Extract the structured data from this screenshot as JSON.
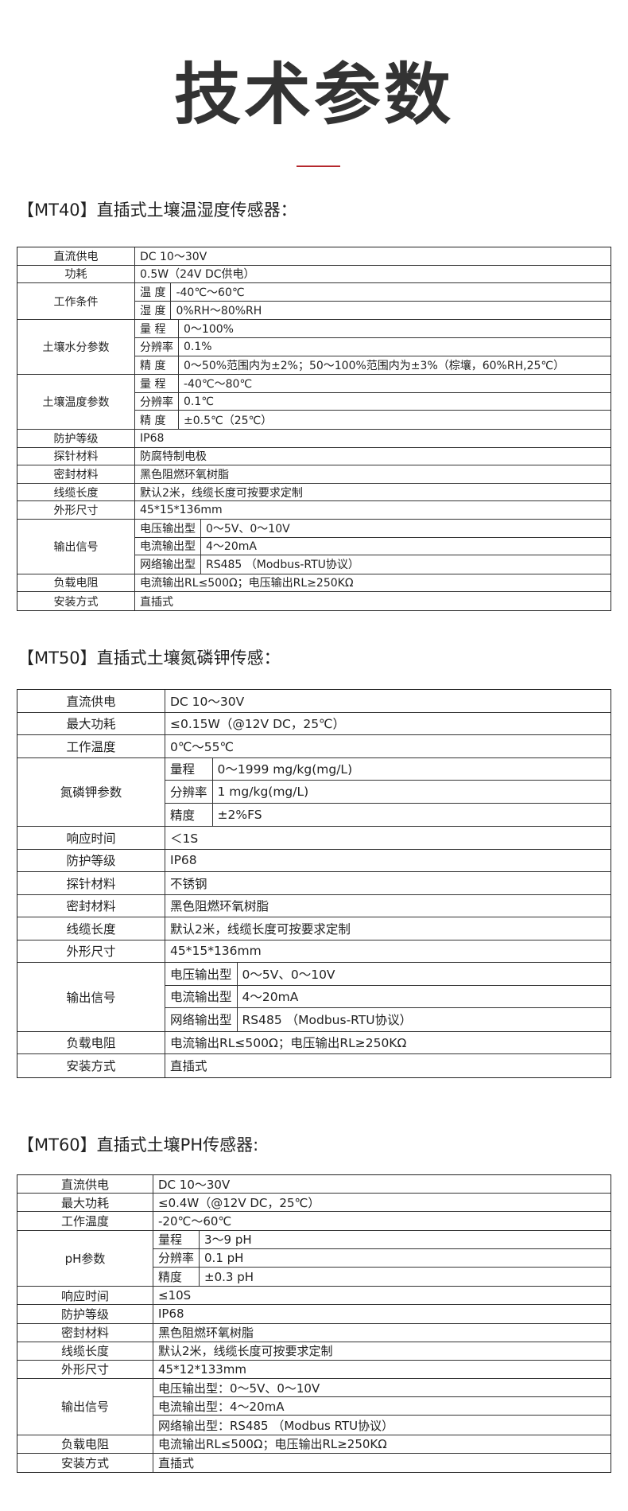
{
  "header": {
    "title": "技术参数"
  },
  "tables": [
    {
      "heading": "【MT40】直插式土壤温湿度传感器：",
      "rows": [
        {
          "label": "直流供电",
          "value": "DC 10～30V"
        },
        {
          "label": "功耗",
          "value": "0.5W（24V DC供电）"
        },
        {
          "label": "工作条件",
          "items": [
            {
              "label": "温 度",
              "value": "-40℃～60℃"
            },
            {
              "label": "湿 度",
              "value": "0%RH～80%RH"
            }
          ]
        },
        {
          "label": "土壤水分参数",
          "items": [
            {
              "label": "量 程",
              "value": "0～100%"
            },
            {
              "label": "分辨率",
              "value": "0.1%"
            },
            {
              "label": "精 度",
              "value": "0～50%范围内为±2%；50～100%范围内为±3%（棕壤，60%RH,25℃）"
            }
          ]
        },
        {
          "label": "土壤温度参数",
          "items": [
            {
              "label": "量 程",
              "value": "-40℃～80℃"
            },
            {
              "label": "分辨率",
              "value": "0.1℃"
            },
            {
              "label": "精 度",
              "value": "±0.5℃（25℃）"
            }
          ]
        },
        {
          "label": "防护等级",
          "value": "IP68"
        },
        {
          "label": "探针材料",
          "value": "防腐特制电极"
        },
        {
          "label": "密封材料",
          "value": "黑色阻燃环氧树脂"
        },
        {
          "label": "线缆长度",
          "value": "默认2米，线缆长度可按要求定制"
        },
        {
          "label": "外形尺寸",
          "value": "45*15*136mm"
        },
        {
          "label": "输出信号",
          "items": [
            {
              "label": "电压输出型",
              "value": "0～5V、0～10V"
            },
            {
              "label": "电流输出型",
              "value": "4～20mA"
            },
            {
              "label": "网络输出型",
              "value": "RS485 （Modbus-RTU协议）"
            }
          ]
        },
        {
          "label": "负载电阻",
          "value": "电流输出RL≤500Ω；电压输出RL≥250KΩ"
        },
        {
          "label": "安装方式",
          "value": "直插式"
        }
      ]
    },
    {
      "heading": "【MT50】直插式土壤氮磷钾传感：",
      "rows": [
        {
          "label": "直流供电",
          "value": "DC 10～30V"
        },
        {
          "label": "最大功耗",
          "value": "≤0.15W（@12V DC，25℃）"
        },
        {
          "label": "工作温度",
          "value": "0℃～55℃"
        },
        {
          "label": "氮磷钾参数",
          "items": [
            {
              "label": "量程",
              "value": "0～1999 mg/kg(mg/L)"
            },
            {
              "label": "分辨率",
              "value": "1 mg/kg(mg/L)"
            },
            {
              "label": "精度",
              "value": "±2%FS"
            }
          ]
        },
        {
          "label": "响应时间",
          "value": "＜1S"
        },
        {
          "label": "防护等级",
          "value": "IP68"
        },
        {
          "label": "探针材料",
          "value": "不锈钢"
        },
        {
          "label": "密封材料",
          "value": "黑色阻燃环氧树脂"
        },
        {
          "label": "线缆长度",
          "value": "默认2米，线缆长度可按要求定制"
        },
        {
          "label": "外形尺寸",
          "value": "45*15*136mm"
        },
        {
          "label": "输出信号",
          "items": [
            {
              "label": "电压输出型",
              "value": "0～5V、0～10V"
            },
            {
              "label": "电流输出型",
              "value": "4～20mA"
            },
            {
              "label": "网络输出型",
              "value": "RS485 （Modbus-RTU协议）"
            }
          ]
        },
        {
          "label": "负载电阻",
          "value": "电流输出RL≤500Ω；电压输出RL≥250KΩ"
        },
        {
          "label": "安装方式",
          "value": "直插式"
        }
      ]
    },
    {
      "heading": "【MT60】直插式土壤PH传感器:",
      "rows": [
        {
          "label": "直流供电",
          "value": "DC 10～30V"
        },
        {
          "label": "最大功耗",
          "value": "≤0.4W（@12V DC，25℃）"
        },
        {
          "label": "工作温度",
          "value": "-20℃～60℃"
        },
        {
          "label": "pH参数",
          "items": [
            {
              "label": "量程",
              "value": "3～9 pH"
            },
            {
              "label": "分辨率",
              "value": "0.1 pH"
            },
            {
              "label": "精度",
              "value": "±0.3 pH"
            }
          ]
        },
        {
          "label": "响应时间",
          "value": "≤10S"
        },
        {
          "label": "防护等级",
          "value": "IP68"
        },
        {
          "label": "密封材料",
          "value": "黑色阻燃环氧树脂"
        },
        {
          "label": "线缆长度",
          "value": "默认2米，线缆长度可按要求定制"
        },
        {
          "label": "外形尺寸",
          "value": "45*12*133mm"
        },
        {
          "label": "输出信号",
          "items": [
            "电压输出型：0～5V、0～10V",
            "电流输出型：4～20mA",
            "网络输出型：RS485 （Modbus RTU协议）"
          ]
        },
        {
          "label": "负载电阻",
          "value": "电流输出RL≤500Ω；电压输出RL≥250KΩ"
        },
        {
          "label": "安装方式",
          "value": "直插式"
        }
      ]
    }
  ]
}
